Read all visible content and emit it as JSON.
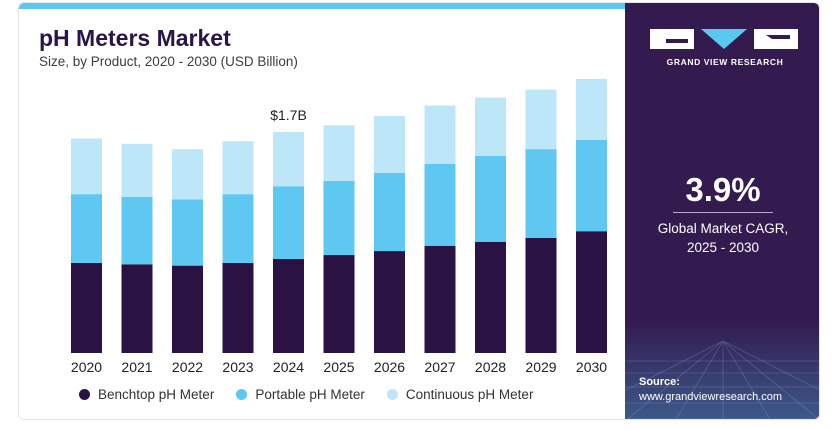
{
  "header": {
    "title": "pH Meters Market",
    "subtitle": "Size, by Product, 2020 - 2030 (USD Billion)"
  },
  "annotation": {
    "label": "$1.7B",
    "category": "2024"
  },
  "legend": [
    {
      "label": "Benchtop pH Meter",
      "color": "#2b1245"
    },
    {
      "label": "Portable pH Meter",
      "color": "#5ec8f2"
    },
    {
      "label": "Continuous pH Meter",
      "color": "#bde7f8"
    }
  ],
  "side": {
    "brand": "GRAND VIEW RESEARCH",
    "cagr_value": "3.9%",
    "cagr_label_1": "Global Market CAGR,",
    "cagr_label_2": "2025 - 2030",
    "source_label": "Source:",
    "source_url": "www.grandviewresearch.com"
  },
  "colors": {
    "panel": "#331a4f",
    "accent": "#5bc8f0"
  },
  "chart_data": {
    "type": "bar",
    "stacked": true,
    "categories": [
      "2020",
      "2021",
      "2022",
      "2023",
      "2024",
      "2025",
      "2026",
      "2027",
      "2028",
      "2029",
      "2030"
    ],
    "series": [
      {
        "name": "Benchtop pH Meter",
        "values": [
          0.68,
          0.67,
          0.66,
          0.68,
          0.71,
          0.74,
          0.77,
          0.81,
          0.84,
          0.87,
          0.92
        ]
      },
      {
        "name": "Portable pH Meter",
        "values": [
          0.52,
          0.51,
          0.5,
          0.52,
          0.55,
          0.56,
          0.59,
          0.62,
          0.65,
          0.67,
          0.69
        ]
      },
      {
        "name": "Continuous pH Meter",
        "values": [
          0.42,
          0.4,
          0.38,
          0.4,
          0.41,
          0.42,
          0.43,
          0.44,
          0.44,
          0.45,
          0.46
        ]
      }
    ],
    "data_labels": [
      {
        "category": "2024",
        "text": "$1.7B"
      }
    ],
    "ylim": [
      0,
      2.1
    ],
    "grid": false,
    "legend_position": "bottom"
  }
}
